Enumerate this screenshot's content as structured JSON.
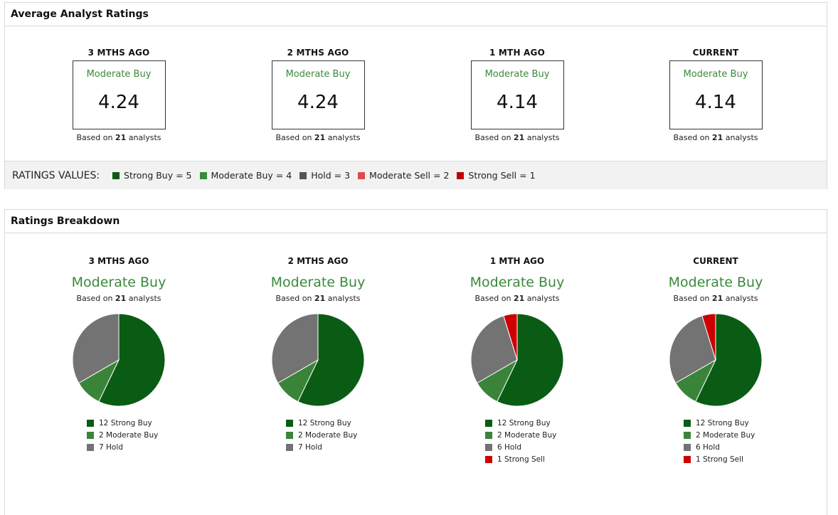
{
  "avg_panel": {
    "title": "Average Analyst Ratings",
    "columns": [
      {
        "period": "3 MTHS AGO",
        "label": "Moderate Buy",
        "value": "4.24",
        "based_prefix": "Based on ",
        "analysts": "21",
        "based_suffix": " analysts"
      },
      {
        "period": "2 MTHS AGO",
        "label": "Moderate Buy",
        "value": "4.24",
        "based_prefix": "Based on ",
        "analysts": "21",
        "based_suffix": " analysts"
      },
      {
        "period": "1 MTH AGO",
        "label": "Moderate Buy",
        "value": "4.14",
        "based_prefix": "Based on ",
        "analysts": "21",
        "based_suffix": " analysts"
      },
      {
        "period": "CURRENT",
        "label": "Moderate Buy",
        "value": "4.14",
        "based_prefix": "Based on ",
        "analysts": "21",
        "based_suffix": " analysts"
      }
    ],
    "legend": {
      "title": "RATINGS VALUES:",
      "items": [
        {
          "label": "Strong Buy = 5",
          "color": "#0a5c14"
        },
        {
          "label": "Moderate Buy = 4",
          "color": "#3a8a3a"
        },
        {
          "label": "Hold = 3",
          "color": "#555555"
        },
        {
          "label": "Moderate Sell = 2",
          "color": "#e04a4a"
        },
        {
          "label": "Strong Sell = 1",
          "color": "#c00000"
        }
      ]
    }
  },
  "breakdown_panel": {
    "title": "Ratings Breakdown",
    "columns": [
      {
        "period": "3 MTHS AGO",
        "label": "Moderate Buy",
        "based_prefix": "Based on ",
        "analysts": "21",
        "based_suffix": " analysts"
      },
      {
        "period": "2 MTHS AGO",
        "label": "Moderate Buy",
        "based_prefix": "Based on ",
        "analysts": "21",
        "based_suffix": " analysts"
      },
      {
        "period": "1 MTH AGO",
        "label": "Moderate Buy",
        "based_prefix": "Based on ",
        "analysts": "21",
        "based_suffix": " analysts"
      },
      {
        "period": "CURRENT",
        "label": "Moderate Buy",
        "based_prefix": "Based on ",
        "analysts": "21",
        "based_suffix": " analysts"
      }
    ]
  },
  "colors": {
    "strong_buy": "#0a5c14",
    "moderate_buy": "#3a843a",
    "hold": "#737373",
    "strong_sell": "#cc0000"
  },
  "chart_data": [
    {
      "type": "pie",
      "title": "3 MTHS AGO",
      "slices": [
        {
          "name": "Strong Buy",
          "value": 12,
          "label": "12 Strong Buy",
          "color": "#0a5c14"
        },
        {
          "name": "Moderate Buy",
          "value": 2,
          "label": "2 Moderate Buy",
          "color": "#3a843a"
        },
        {
          "name": "Hold",
          "value": 7,
          "label": "7 Hold",
          "color": "#737373"
        }
      ]
    },
    {
      "type": "pie",
      "title": "2 MTHS AGO",
      "slices": [
        {
          "name": "Strong Buy",
          "value": 12,
          "label": "12 Strong Buy",
          "color": "#0a5c14"
        },
        {
          "name": "Moderate Buy",
          "value": 2,
          "label": "2 Moderate Buy",
          "color": "#3a843a"
        },
        {
          "name": "Hold",
          "value": 7,
          "label": "7 Hold",
          "color": "#737373"
        }
      ]
    },
    {
      "type": "pie",
      "title": "1 MTH AGO",
      "slices": [
        {
          "name": "Strong Buy",
          "value": 12,
          "label": "12 Strong Buy",
          "color": "#0a5c14"
        },
        {
          "name": "Moderate Buy",
          "value": 2,
          "label": "2 Moderate Buy",
          "color": "#3a843a"
        },
        {
          "name": "Hold",
          "value": 6,
          "label": "6 Hold",
          "color": "#737373"
        },
        {
          "name": "Strong Sell",
          "value": 1,
          "label": "1 Strong Sell",
          "color": "#cc0000"
        }
      ]
    },
    {
      "type": "pie",
      "title": "CURRENT",
      "slices": [
        {
          "name": "Strong Buy",
          "value": 12,
          "label": "12 Strong Buy",
          "color": "#0a5c14"
        },
        {
          "name": "Moderate Buy",
          "value": 2,
          "label": "2 Moderate Buy",
          "color": "#3a843a"
        },
        {
          "name": "Hold",
          "value": 6,
          "label": "6 Hold",
          "color": "#737373"
        },
        {
          "name": "Strong Sell",
          "value": 1,
          "label": "1 Strong Sell",
          "color": "#cc0000"
        }
      ]
    }
  ]
}
